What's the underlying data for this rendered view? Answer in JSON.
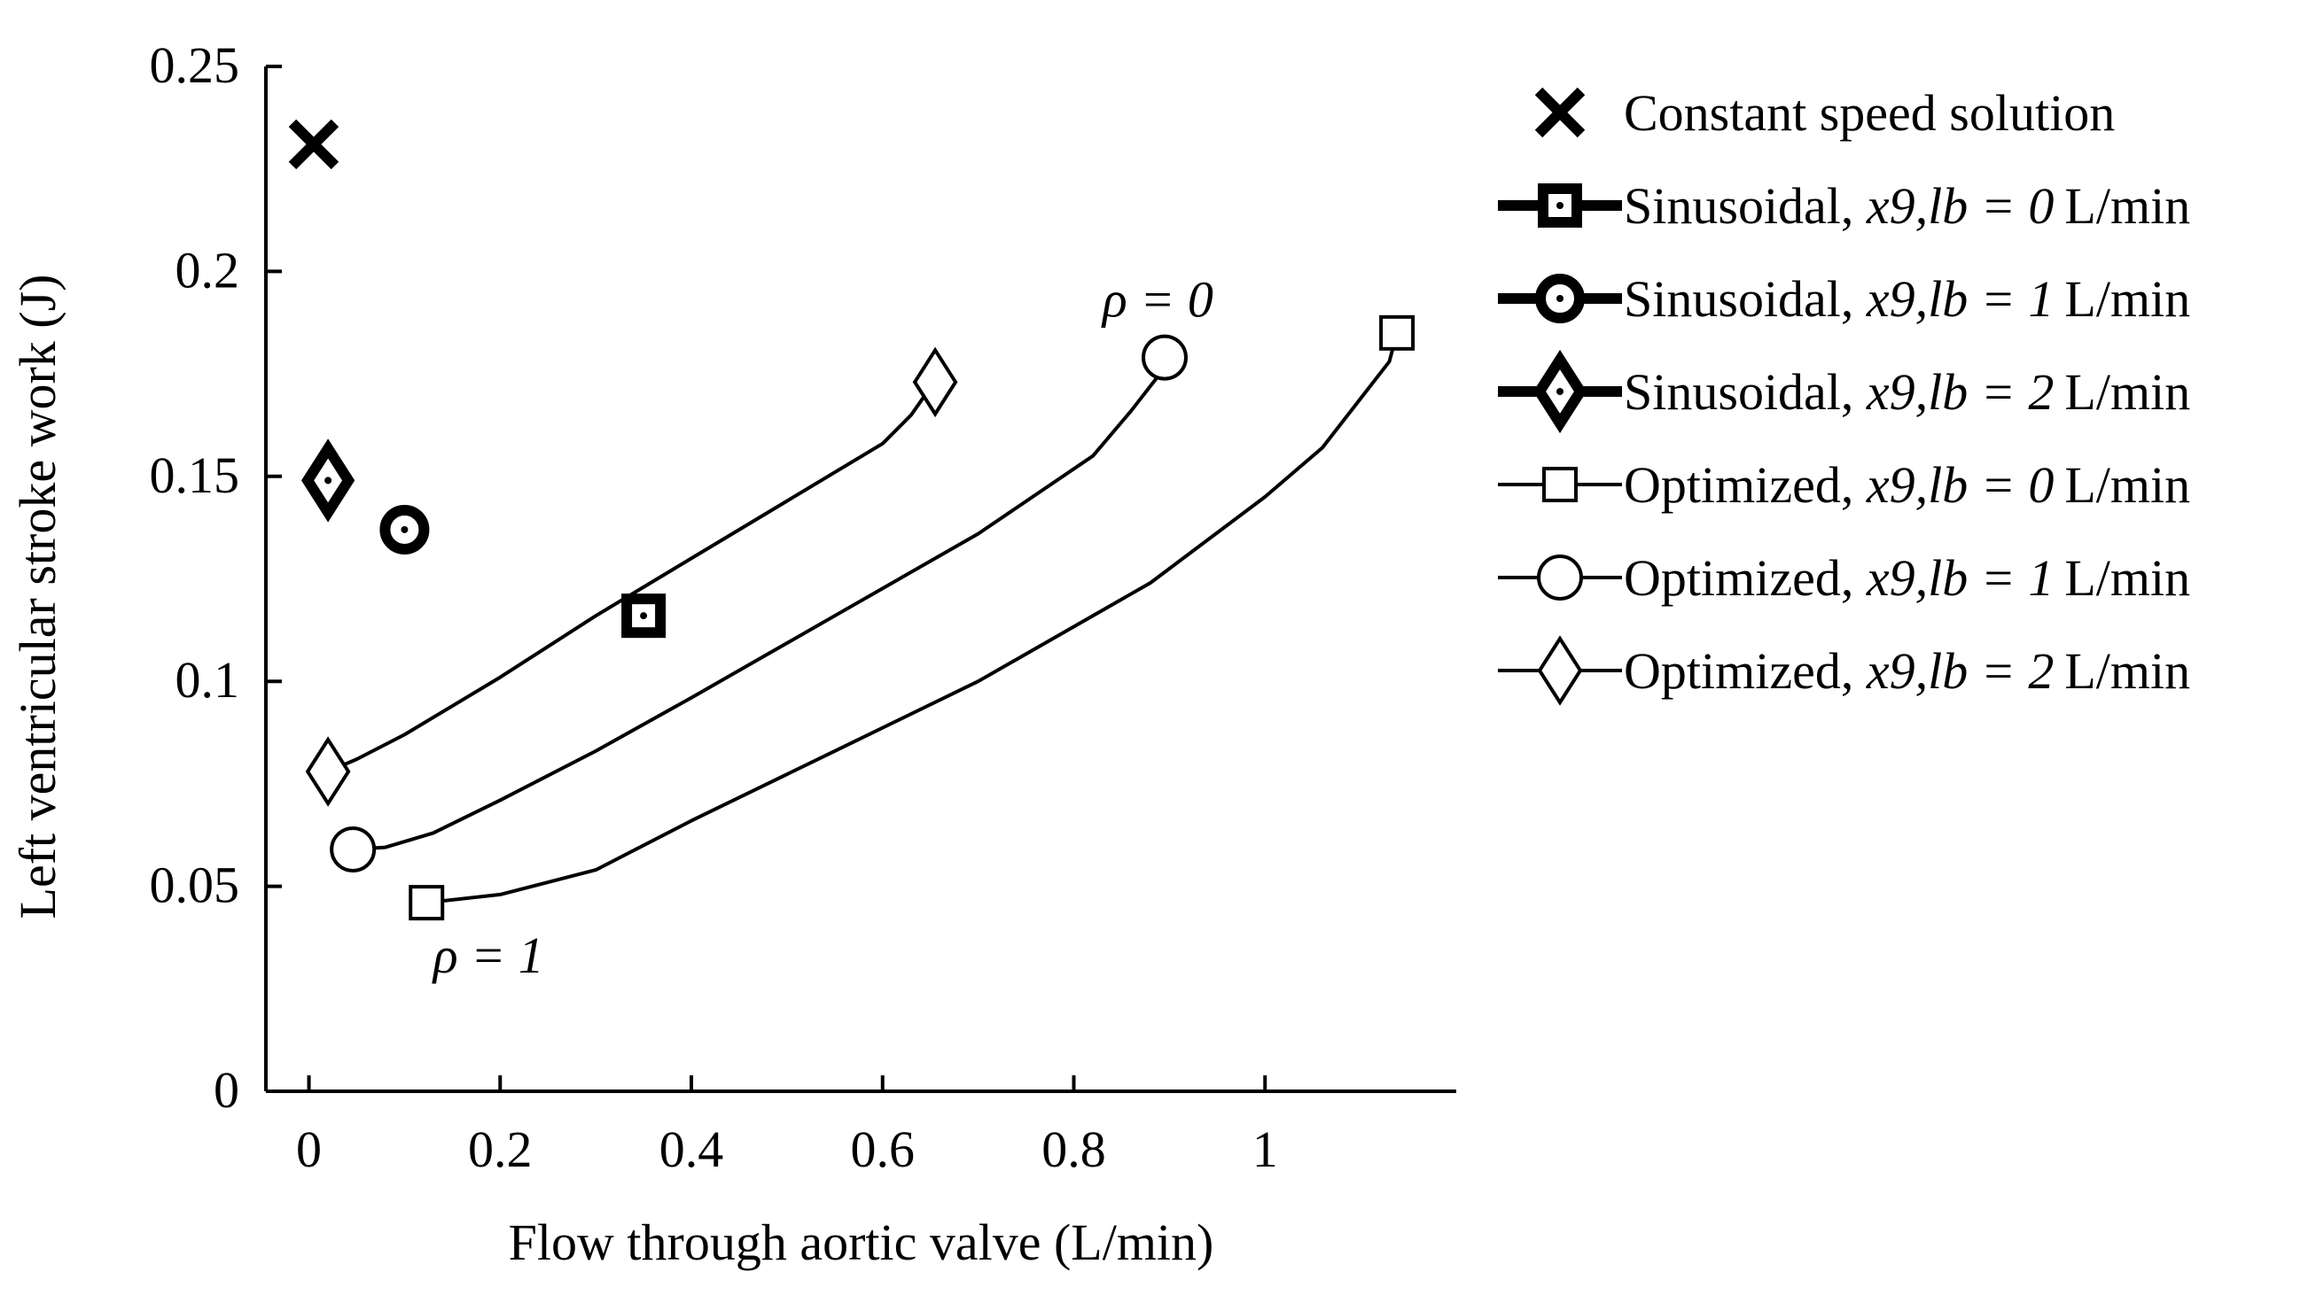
{
  "chart_data": {
    "type": "scatter",
    "title": "",
    "xlabel": "Flow through aortic valve (L/min)",
    "ylabel": "Left ventricular stroke work (J)",
    "xlim": [
      -0.045,
      1.2
    ],
    "ylim": [
      0,
      0.25
    ],
    "x_ticks": [
      0,
      0.2,
      0.4,
      0.6,
      0.8,
      1
    ],
    "x_tick_labels": [
      "0",
      "0.2",
      "0.4",
      "0.6",
      "0.8",
      "1"
    ],
    "y_ticks": [
      0,
      0.05,
      0.1,
      0.15,
      0.2,
      0.25
    ],
    "y_tick_labels": [
      "0",
      "0.05",
      "0.1",
      "0.15",
      "0.2",
      "0.25"
    ],
    "grid": false,
    "legend_position": "outside-right",
    "series": [
      {
        "name": "Constant speed solution",
        "marker": "x",
        "style": "point-bold",
        "x": [
          0.005
        ],
        "y": [
          0.231
        ]
      },
      {
        "name": "Sinusoidal, x9,lb = 0 L/min",
        "marker": "square",
        "style": "point-bold",
        "x": [
          0.35
        ],
        "y": [
          0.116
        ]
      },
      {
        "name": "Sinusoidal, x9,lb = 1 L/min",
        "marker": "circle",
        "style": "point-bold",
        "x": [
          0.1
        ],
        "y": [
          0.137
        ]
      },
      {
        "name": "Sinusoidal, x9,lb = 2 L/min",
        "marker": "diamond",
        "style": "point-bold",
        "x": [
          0.02
        ],
        "y": [
          0.149
        ]
      },
      {
        "name": "Optimized, x9,lb = 0 L/min",
        "marker": "square",
        "style": "line-thin",
        "x": [
          0.123,
          0.2,
          0.3,
          0.4,
          0.55,
          0.7,
          0.88,
          1.0,
          1.06,
          1.1,
          1.13,
          1.138
        ],
        "y": [
          0.046,
          0.048,
          0.054,
          0.066,
          0.083,
          0.1,
          0.124,
          0.145,
          0.157,
          0.169,
          0.178,
          0.185
        ],
        "marked_points": [
          0,
          11
        ]
      },
      {
        "name": "Optimized, x9,lb = 1 L/min",
        "marker": "circle",
        "style": "line-thin",
        "x": [
          0.046,
          0.08,
          0.13,
          0.2,
          0.3,
          0.4,
          0.55,
          0.7,
          0.82,
          0.86,
          0.89,
          0.895
        ],
        "y": [
          0.059,
          0.0595,
          0.063,
          0.071,
          0.083,
          0.096,
          0.116,
          0.136,
          0.155,
          0.166,
          0.175,
          0.179
        ],
        "marked_points": [
          0,
          11
        ]
      },
      {
        "name": "Optimized, x9,lb = 2 L/min",
        "marker": "diamond",
        "style": "line-thin",
        "x": [
          0.02,
          0.05,
          0.1,
          0.2,
          0.3,
          0.4,
          0.5,
          0.6,
          0.63,
          0.645,
          0.655
        ],
        "y": [
          0.078,
          0.081,
          0.087,
          0.101,
          0.116,
          0.13,
          0.144,
          0.158,
          0.165,
          0.17,
          0.173
        ],
        "marked_points": [
          0,
          10
        ]
      }
    ],
    "annotations": [
      {
        "text": "ρ = 0",
        "x": 0.83,
        "y": 0.189
      },
      {
        "text": "ρ = 1",
        "x": 0.13,
        "y": 0.029
      }
    ]
  },
  "legend_entries": [
    {
      "prefix": "Constant speed solution",
      "math": "",
      "unit": ""
    },
    {
      "prefix": "Sinusoidal, ",
      "math": "x9,lb = 0",
      "unit": "L/min"
    },
    {
      "prefix": "Sinusoidal, ",
      "math": "x9,lb = 1",
      "unit": "L/min"
    },
    {
      "prefix": "Sinusoidal, ",
      "math": "x9,lb = 2",
      "unit": "L/min"
    },
    {
      "prefix": "Optimized, ",
      "math": "x9,lb = 0",
      "unit": "L/min"
    },
    {
      "prefix": "Optimized, ",
      "math": "x9,lb = 1",
      "unit": "L/min"
    },
    {
      "prefix": "Optimized, ",
      "math": "x9,lb = 2",
      "unit": "L/min"
    }
  ]
}
